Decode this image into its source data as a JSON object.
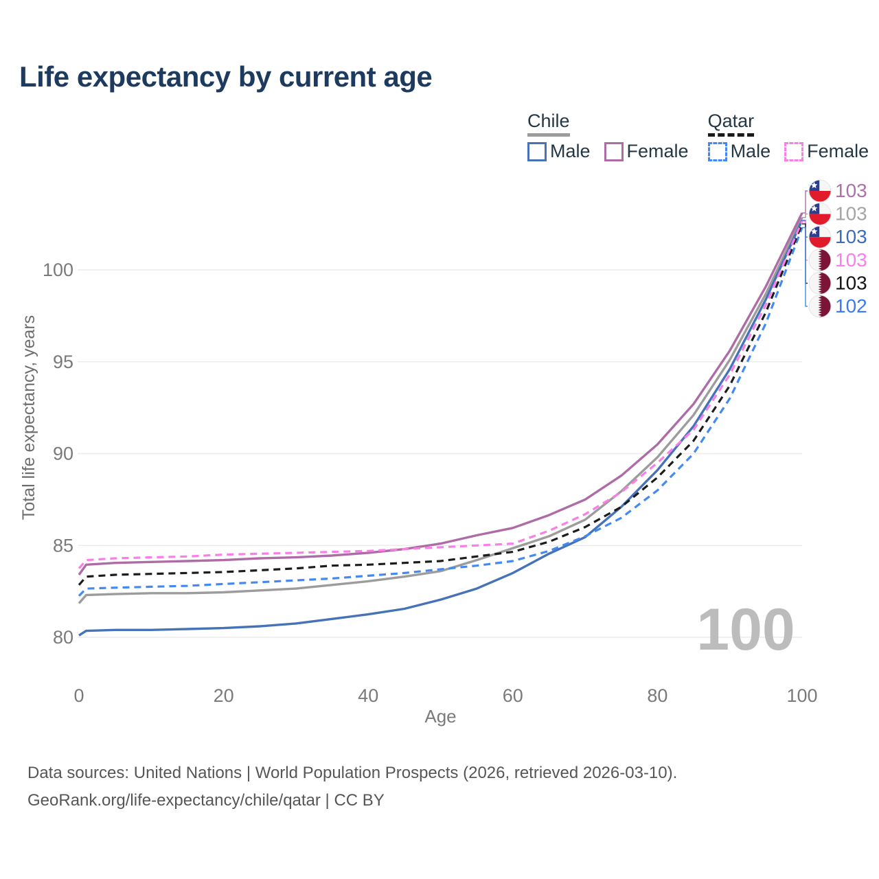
{
  "title": "Life expectancy by current age",
  "legend": {
    "chile": {
      "label": "Chile",
      "male": "Male",
      "female": "Female"
    },
    "qatar": {
      "label": "Qatar",
      "male": "Male",
      "female": "Female"
    }
  },
  "watermark": "100",
  "footer": {
    "line1": "Data sources: United Nations | World Population Prospects (2026, retrieved 2026-03-10).",
    "line2": "GeoRank.org/life-expectancy/chile/qatar | CC BY"
  },
  "colors": {
    "title_text": "#1d3a5f",
    "legend_text": "#243746",
    "axis_text": "#7a7a7a",
    "gridline": "#ececec",
    "watermark": "#bcbcbc",
    "footer_text": "#565656",
    "chile_male": "#4673b8",
    "chile_female": "#ae6ca6",
    "chile_total": "#9c9c9c",
    "qatar_male": "#4489f2",
    "qatar_female": "#fa7de8",
    "qatar_total": "#1c1c1c",
    "chile_flag_blue": "#2c3e8c",
    "chile_flag_red": "#e11b2c",
    "qatar_flag_maroon": "#7a1538"
  },
  "chart_data": {
    "type": "line",
    "title": "Life expectancy by current age",
    "xlabel": "Age",
    "ylabel": "Total life expectancy, years",
    "xlim": [
      0,
      100
    ],
    "ylim": [
      79.0,
      103.5
    ],
    "x_ticks": [
      0,
      20,
      40,
      60,
      80,
      100
    ],
    "y_ticks": [
      80,
      85,
      90,
      95,
      100
    ],
    "grid": "horizontal",
    "legend_position": "top-right",
    "age_counter": "100",
    "x": [
      0,
      1,
      5,
      10,
      15,
      20,
      25,
      30,
      35,
      40,
      45,
      50,
      55,
      60,
      65,
      70,
      75,
      80,
      85,
      90,
      95,
      100
    ],
    "series": [
      {
        "name": "Chile Female",
        "country": "Chile",
        "sex": "Female",
        "flag": "chile",
        "color": "#ae6ca6",
        "dash": "solid",
        "z": 4,
        "end_row": 0,
        "end_label": "103",
        "end_label_color": "#ad71a8",
        "values": [
          83.4,
          83.95,
          84.05,
          84.1,
          84.15,
          84.2,
          84.3,
          84.35,
          84.45,
          84.6,
          84.8,
          85.1,
          85.55,
          85.95,
          86.65,
          87.5,
          88.8,
          90.5,
          92.7,
          95.6,
          99.1,
          103.1
        ]
      },
      {
        "name": "Chile Total",
        "country": "Chile",
        "sex": "Both",
        "flag": "chile",
        "color": "#9c9c9c",
        "dash": "solid",
        "z": 0,
        "end_row": 1,
        "end_label": "103",
        "end_label_color": "#a5a5a5",
        "values": [
          81.85,
          82.3,
          82.35,
          82.4,
          82.4,
          82.45,
          82.55,
          82.65,
          82.85,
          83.05,
          83.3,
          83.6,
          84.2,
          84.85,
          85.5,
          86.4,
          87.95,
          89.8,
          92.1,
          95.1,
          98.7,
          102.85
        ]
      },
      {
        "name": "Chile Male",
        "country": "Chile",
        "sex": "Male",
        "flag": "chile",
        "color": "#4673b8",
        "dash": "solid",
        "z": 1,
        "end_row": 2,
        "end_label": "103",
        "end_label_color": "#3d6db8",
        "values": [
          80.1,
          80.35,
          80.4,
          80.4,
          80.45,
          80.5,
          80.6,
          80.75,
          81.0,
          81.25,
          81.55,
          82.05,
          82.65,
          83.5,
          84.55,
          85.45,
          87.1,
          89.1,
          91.5,
          94.6,
          98.4,
          102.7
        ]
      },
      {
        "name": "Qatar Female",
        "country": "Qatar",
        "sex": "Female",
        "flag": "qatar",
        "color": "#fa7de8",
        "dash": "dashed",
        "z": 5,
        "end_row": 3,
        "end_label": "103",
        "end_label_color": "#fb7df0",
        "values": [
          83.75,
          84.2,
          84.3,
          84.35,
          84.4,
          84.5,
          84.55,
          84.6,
          84.65,
          84.7,
          84.8,
          84.9,
          85.0,
          85.1,
          85.8,
          86.7,
          87.9,
          89.5,
          91.3,
          94.3,
          98.1,
          102.65
        ]
      },
      {
        "name": "Qatar Total",
        "country": "Qatar",
        "sex": "Both",
        "flag": "qatar",
        "color": "#1c1c1c",
        "dash": "dashed",
        "z": 3,
        "end_row": 4,
        "end_label": "103",
        "end_label_color": "#151515",
        "values": [
          82.85,
          83.3,
          83.4,
          83.45,
          83.5,
          83.55,
          83.65,
          83.75,
          83.9,
          83.95,
          84.05,
          84.15,
          84.4,
          84.65,
          85.2,
          86.0,
          87.1,
          88.7,
          90.7,
          93.7,
          97.7,
          102.5
        ]
      },
      {
        "name": "Qatar Male",
        "country": "Qatar",
        "sex": "Male",
        "flag": "qatar",
        "color": "#4489f2",
        "dash": "dashed",
        "z": 2,
        "end_row": 5,
        "end_label": "102",
        "end_label_color": "#3b7af0",
        "values": [
          82.25,
          82.65,
          82.7,
          82.75,
          82.8,
          82.9,
          83.0,
          83.1,
          83.2,
          83.35,
          83.5,
          83.7,
          83.9,
          84.15,
          84.7,
          85.5,
          86.5,
          88.0,
          90.0,
          93.0,
          97.1,
          102.3
        ]
      }
    ]
  }
}
